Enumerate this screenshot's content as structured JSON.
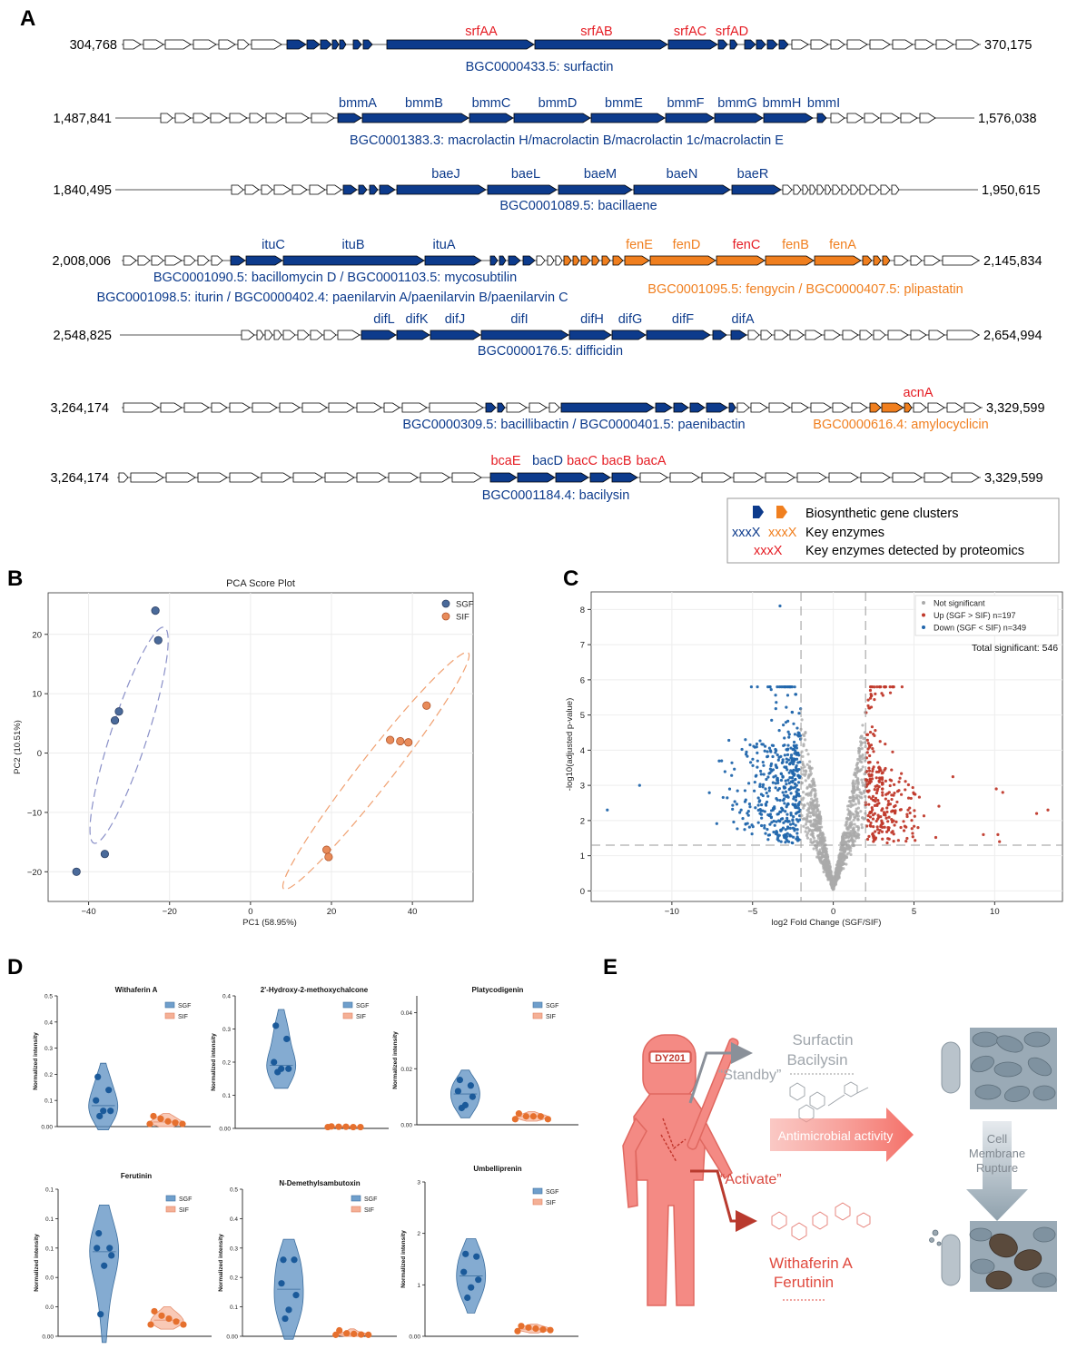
{
  "panel_labels": [
    "A",
    "B",
    "C",
    "D",
    "E"
  ],
  "colors": {
    "blue": "#0d3b8c",
    "orange": "#f07f1f",
    "red": "#e51c23",
    "sgf": "#4a6a9a",
    "sif": "#e88b5a",
    "up": "#c0392b",
    "down": "#2166ac",
    "ns": "#aaaaaa"
  },
  "panelA": {
    "tracks": [
      {
        "left": "304,768",
        "right": "370,175",
        "captions": [
          {
            "text": "BGC0000433.5: surfactin",
            "color": "blue"
          }
        ],
        "genes": [
          {
            "text": "srfAA",
            "color": "red"
          },
          {
            "text": "srfAB",
            "color": "red"
          },
          {
            "text": "srfAC",
            "color": "red"
          },
          {
            "text": "srfAD",
            "color": "red"
          }
        ]
      },
      {
        "left": "1,487,841",
        "right": "1,576,038",
        "captions": [
          {
            "text": "BGC0001383.3: macrolactin H/macrolactin B/macrolactin 1c/macrolactin E",
            "color": "blue"
          }
        ],
        "genes": [
          {
            "text": "bmmA",
            "color": "blue"
          },
          {
            "text": "bmmB",
            "color": "blue"
          },
          {
            "text": "bmmC",
            "color": "blue"
          },
          {
            "text": "bmmD",
            "color": "blue"
          },
          {
            "text": "bmmE",
            "color": "blue"
          },
          {
            "text": "bmmF",
            "color": "blue"
          },
          {
            "text": "bmmG",
            "color": "blue"
          },
          {
            "text": "bmmH",
            "color": "blue"
          },
          {
            "text": "bmmI",
            "color": "blue"
          }
        ]
      },
      {
        "left": "1,840,495",
        "right": "1,950,615",
        "captions": [
          {
            "text": "BGC0001089.5: bacillaene",
            "color": "blue"
          }
        ],
        "genes": [
          {
            "text": "baeJ",
            "color": "blue"
          },
          {
            "text": "baeL",
            "color": "blue"
          },
          {
            "text": "baeM",
            "color": "blue"
          },
          {
            "text": "baeN",
            "color": "blue"
          },
          {
            "text": "baeR",
            "color": "blue"
          }
        ]
      },
      {
        "left": "2,008,006",
        "right": "2,145,834",
        "captions": [
          {
            "text": "BGC0001090.5: bacillomycin D / BGC0001103.5: mycosubtilin",
            "color": "blue"
          },
          {
            "text": "BGC0001098.5: iturin / BGC0000402.4: paenilarvin A/paenilarvin B/paenilarvin C",
            "color": "blue"
          },
          {
            "text": "BGC0001095.5: fengycin / BGC0000407.5: plipastatin",
            "color": "orange"
          }
        ],
        "genes": [
          {
            "text": "ituC",
            "color": "blue"
          },
          {
            "text": "ituB",
            "color": "blue"
          },
          {
            "text": "ituA",
            "color": "blue"
          },
          {
            "text": "fenE",
            "color": "orange"
          },
          {
            "text": "fenD",
            "color": "orange"
          },
          {
            "text": "fenC",
            "color": "red"
          },
          {
            "text": "fenB",
            "color": "orange"
          },
          {
            "text": "fenA",
            "color": "orange"
          }
        ]
      },
      {
        "left": "2,548,825",
        "right": "2,654,994",
        "captions": [
          {
            "text": "BGC0000176.5: difficidin",
            "color": "blue"
          }
        ],
        "genes": [
          {
            "text": "difL",
            "color": "blue"
          },
          {
            "text": "difK",
            "color": "blue"
          },
          {
            "text": "difJ",
            "color": "blue"
          },
          {
            "text": "difI",
            "color": "blue"
          },
          {
            "text": "difH",
            "color": "blue"
          },
          {
            "text": "difG",
            "color": "blue"
          },
          {
            "text": "difF",
            "color": "blue"
          },
          {
            "text": "difA",
            "color": "blue"
          }
        ]
      },
      {
        "left": "3,264,174",
        "right": "3,329,599",
        "captions": [
          {
            "text": "BGC0000309.5: bacillibactin / BGC0000401.5: paenibactin",
            "color": "blue"
          },
          {
            "text": "BGC0000616.4: amylocyclicin",
            "color": "orange"
          }
        ],
        "genes": [
          {
            "text": "acnA",
            "color": "red"
          }
        ]
      },
      {
        "left": "3,264,174",
        "right": "3,329,599",
        "captions": [
          {
            "text": "BGC0001184.4: bacilysin",
            "color": "blue"
          }
        ],
        "genes": [
          {
            "text": "bcaE",
            "color": "red"
          },
          {
            "text": "bacD",
            "color": "blue"
          },
          {
            "text": "bacC",
            "color": "red"
          },
          {
            "text": "bacB",
            "color": "red"
          },
          {
            "text": "bacA",
            "color": "red"
          }
        ]
      }
    ],
    "legend": {
      "clusters": "Biosynthetic gene clusters",
      "key_symbol_blue": "xxxX",
      "key_symbol_orange": "xxxX",
      "key": "Key enzymes",
      "proteomics_symbol": "xxxX",
      "proteomics": "Key enzymes detected by proteomics"
    }
  },
  "chart_data": [
    {
      "type": "scatter",
      "panel": "B",
      "title": "PCA Score Plot",
      "xlabel": "PC1 (58.95%)",
      "ylabel": "PC2 (10.51%)",
      "xlim": [
        -50,
        55
      ],
      "ylim": [
        -25,
        27
      ],
      "xticks": [
        -40,
        -20,
        0,
        20,
        40
      ],
      "yticks": [
        -20,
        -10,
        0,
        10,
        20
      ],
      "grid": true,
      "legend_position": "top-right",
      "series": [
        {
          "name": "SGF",
          "points": [
            [
              -23.5,
              24
            ],
            [
              -22.8,
              19
            ],
            [
              -32.5,
              7
            ],
            [
              -33.5,
              5.5
            ],
            [
              -36,
              -17
            ],
            [
              -43,
              -20
            ]
          ]
        },
        {
          "name": "SIF",
          "points": [
            [
              43.5,
              8
            ],
            [
              34.5,
              2.2
            ],
            [
              37,
              2
            ],
            [
              39,
              1.8
            ],
            [
              18.8,
              -16.3
            ],
            [
              19.3,
              -17.5
            ]
          ]
        }
      ]
    },
    {
      "type": "scatter",
      "panel": "C",
      "xlabel": "log2 Fold Change (SGF/SIF)",
      "ylabel": "-log10(adjusted p-value)",
      "xlim": [
        -15,
        14.2
      ],
      "ylim": [
        -0.3,
        8.5
      ],
      "xticks": [
        -10,
        -5,
        0,
        5,
        10
      ],
      "yticks": [
        0,
        1,
        2,
        3,
        4,
        5,
        6,
        7,
        8
      ],
      "grid": true,
      "legend_position": "top-right",
      "fc_threshold": 2,
      "p_threshold": 1.3,
      "series": [
        {
          "name": "Not significant"
        },
        {
          "name": "Up (SGF > SIF) n=197"
        },
        {
          "name": "Down (SGF < SIF) n=349"
        }
      ],
      "annotation": "Total significant: 546",
      "highlight_points": [
        [
          -3.3,
          8.1
        ],
        [
          2.3,
          5.7
        ],
        [
          2.6,
          5.6
        ],
        [
          -14,
          2.3
        ],
        [
          -12,
          3.0
        ],
        [
          13.3,
          2.3
        ],
        [
          12.6,
          2.2
        ],
        [
          10.5,
          2.8
        ],
        [
          10.1,
          2.9
        ],
        [
          10.2,
          1.6
        ],
        [
          10.3,
          1.4
        ],
        [
          9.3,
          1.6
        ]
      ]
    },
    {
      "type": "violin",
      "panel": "D",
      "ylabel": "Normalized intensity",
      "legend": [
        "SGF",
        "SIF"
      ],
      "plots": [
        {
          "title": "Withaferin A",
          "ylim": [
            0,
            0.5
          ],
          "yticks": [
            0,
            0.1,
            0.2,
            0.3,
            0.4,
            0.5
          ],
          "sgf": [
            0.19,
            0.14,
            0.1,
            0.06,
            0.06,
            0.04
          ],
          "sif": [
            0.04,
            0.03,
            0.02,
            0.015,
            0.01,
            0.01
          ]
        },
        {
          "title": "2'-Hydroxy-2-methoxychalcone",
          "ylim": [
            0,
            0.4
          ],
          "yticks": [
            0,
            0.1,
            0.2,
            0.3,
            0.4
          ],
          "sgf": [
            0.31,
            0.27,
            0.2,
            0.18,
            0.18,
            0.17
          ],
          "sif": [
            0.006,
            0.005,
            0.005,
            0.004,
            0.004,
            0.004
          ]
        },
        {
          "title": "Platycodigenin",
          "ylim": [
            0,
            0.046
          ],
          "yticks": [
            0,
            0.02,
            0.04
          ],
          "sgf": [
            0.016,
            0.014,
            0.012,
            0.01,
            0.007,
            0.006
          ],
          "sif": [
            0.004,
            0.003,
            0.003,
            0.003,
            0.002,
            0.002
          ]
        },
        {
          "title": "Ferutinin",
          "ylim": [
            0,
            0.1
          ],
          "yticks": [
            0,
            0.02,
            0.04,
            0.06,
            0.08,
            0.1
          ],
          "sgf": [
            0.07,
            0.06,
            0.06,
            0.055,
            0.048,
            0.015
          ],
          "sif": [
            0.017,
            0.014,
            0.012,
            0.01,
            0.008,
            0.008
          ]
        },
        {
          "title": "N-Demethylsambutoxin",
          "ylim": [
            0,
            0.5
          ],
          "yticks": [
            0,
            0.1,
            0.2,
            0.3,
            0.4,
            0.5
          ],
          "sgf": [
            0.26,
            0.26,
            0.18,
            0.14,
            0.09,
            0.06
          ],
          "sif": [
            0.02,
            0.01,
            0.008,
            0.006,
            0.005,
            0.005
          ]
        },
        {
          "title": "Umbelliprenin",
          "ylim": [
            0,
            3
          ],
          "yticks": [
            0,
            1,
            2,
            3
          ],
          "sgf": [
            1.6,
            1.55,
            1.25,
            1.1,
            0.95,
            0.75
          ],
          "sif": [
            0.2,
            0.17,
            0.15,
            0.13,
            0.12,
            0.1
          ]
        }
      ]
    }
  ],
  "panelE": {
    "strain": "DY201",
    "standby": "“Standby”",
    "activate": "“Activate”",
    "standby_compounds": [
      "Surfactin",
      "Bacilysin"
    ],
    "active_compounds": [
      "Withaferin A",
      "Ferutinin"
    ],
    "activity": "Antimicrobial activity",
    "effect": [
      "Cell",
      "Membrane",
      "Rupture"
    ]
  }
}
